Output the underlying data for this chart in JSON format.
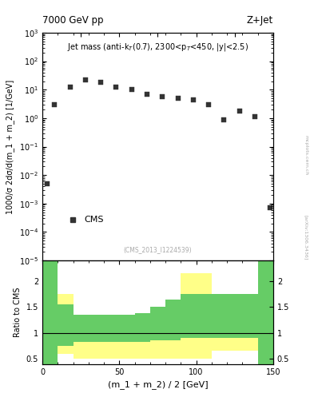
{
  "title_left": "7000 GeV pp",
  "title_right": "Z+Jet",
  "annotation": "Jet mass (anti-k$_T$(0.7), 2300<p$_T$<450, |y|<2.5)",
  "cms_label": "CMS",
  "inspire_label": "(CMS_2013_I1224539)",
  "arxiv_label": "[arXiv:1306.3436]",
  "mcplots_label": "mcplots.cern.ch",
  "ylabel_main": "1000/σ 2dσ/d(m_1 + m_2) [1/GeV]",
  "ylabel_ratio": "Ratio to CMS",
  "xlabel": "(m_1 + m_2) / 2 [GeV]",
  "xlim": [
    0,
    150
  ],
  "ylim_main": [
    1e-05,
    1000.0
  ],
  "ylim_ratio": [
    0.4,
    2.4
  ],
  "data_x": [
    3,
    8,
    18,
    28,
    38,
    48,
    58,
    68,
    78,
    88,
    98,
    108,
    118,
    128,
    138,
    148
  ],
  "data_y": [
    0.005,
    3.0,
    12.0,
    22.0,
    18.0,
    12.0,
    10.0,
    7.0,
    5.5,
    5.0,
    4.5,
    3.0,
    0.85,
    1.8,
    1.1,
    0.0007
  ],
  "data_color": "#333333",
  "marker": "s",
  "marker_size": 4,
  "ratio_bins": [
    0,
    10,
    20,
    30,
    40,
    50,
    60,
    70,
    80,
    90,
    100,
    110,
    120,
    130,
    140,
    150
  ],
  "green_upper": [
    2.4,
    1.55,
    1.35,
    1.35,
    1.35,
    1.35,
    1.38,
    1.5,
    1.65,
    1.75,
    1.75,
    1.75,
    1.75,
    1.75,
    2.4
  ],
  "green_lower": [
    0.4,
    0.75,
    0.82,
    0.82,
    0.82,
    0.82,
    0.82,
    0.86,
    0.86,
    0.9,
    0.9,
    0.9,
    0.9,
    0.9,
    0.4
  ],
  "yellow_upper": [
    2.4,
    1.75,
    1.35,
    1.35,
    1.35,
    1.35,
    1.38,
    1.5,
    1.65,
    2.15,
    2.15,
    1.75,
    1.75,
    1.75,
    2.4
  ],
  "yellow_lower": [
    0.4,
    0.6,
    0.5,
    0.5,
    0.5,
    0.5,
    0.5,
    0.5,
    0.5,
    0.5,
    0.5,
    0.65,
    0.65,
    0.65,
    0.4
  ],
  "green_color": "#66cc66",
  "yellow_color": "#ffff88",
  "background_color": "#ffffff",
  "ratio_yticks": [
    0.5,
    1.0,
    1.5,
    2.0
  ],
  "ratio_ytick_labels": [
    "0.5",
    "1",
    "1.5",
    "2"
  ]
}
